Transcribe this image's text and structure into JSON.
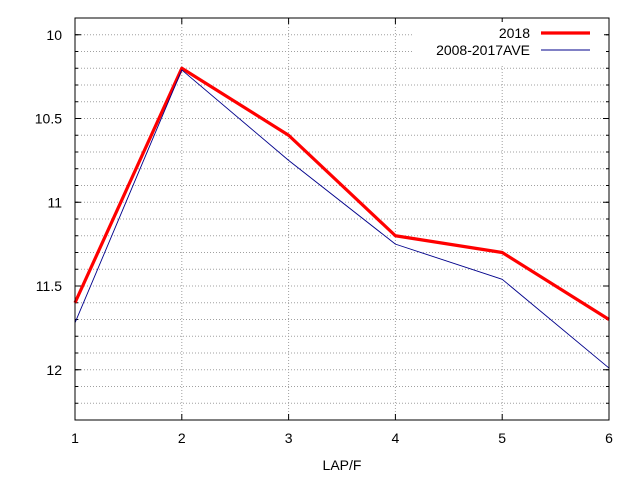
{
  "chart_data": {
    "type": "line",
    "title": "",
    "xlabel": "LAP/F",
    "ylabel": "",
    "x": [
      1,
      2,
      3,
      4,
      5,
      6
    ],
    "xlim": [
      1,
      6
    ],
    "ylim": [
      12.3,
      9.9
    ],
    "y_inverted": true,
    "x_ticks": [
      1,
      2,
      3,
      4,
      5,
      6
    ],
    "y_ticks": [
      10,
      10.5,
      11,
      11.5,
      12
    ],
    "y_minor_step": 0.1,
    "grid": true,
    "legend_position": "top-right",
    "series": [
      {
        "name": "2018",
        "color": "#ff0000",
        "values": [
          11.6,
          10.2,
          10.6,
          11.2,
          11.3,
          11.7
        ]
      },
      {
        "name": "2008-2017AVE",
        "color": "#00008b",
        "values": [
          11.72,
          10.21,
          10.75,
          11.25,
          11.46,
          11.99
        ]
      }
    ]
  }
}
